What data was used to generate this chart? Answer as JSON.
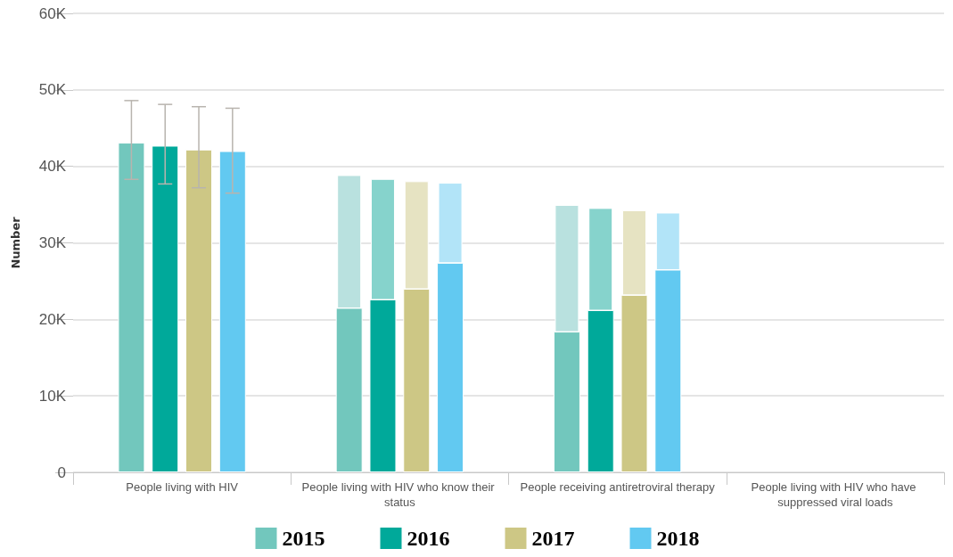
{
  "chart_data": {
    "type": "bar",
    "ylabel": "Number",
    "categories": [
      "People living with HIV",
      "People living with HIV who know their status",
      "People receiving antiretroviral therapy",
      "People living with HIV who have suppressed viral loads"
    ],
    "series": [
      {
        "name": "2015",
        "color": "#72c7bd",
        "values": [
          43100,
          21500,
          18400,
          null
        ],
        "errors": [
          [
            38300,
            48600
          ],
          null,
          null,
          null
        ]
      },
      {
        "color": "#b9e1df",
        "values": [
          null,
          17300,
          16500,
          null
        ],
        "base": [
          null,
          21500,
          18400,
          null
        ]
      },
      {
        "name": "2016",
        "color": "#00a99a",
        "values": [
          42700,
          22600,
          21200,
          null
        ],
        "errors": [
          [
            37700,
            48100
          ],
          null,
          null,
          null
        ]
      },
      {
        "color": "#86d3cc",
        "values": [
          null,
          15700,
          13300,
          null
        ],
        "base": [
          null,
          22600,
          21200,
          null
        ]
      },
      {
        "name": "2017",
        "color": "#cdc785",
        "values": [
          42200,
          24000,
          23200,
          null
        ],
        "errors": [
          [
            37200,
            47800
          ],
          null,
          null,
          null
        ]
      },
      {
        "color": "#e6e3c2",
        "values": [
          null,
          14000,
          11000,
          null
        ],
        "base": [
          null,
          24000,
          23200,
          null
        ]
      },
      {
        "name": "2018",
        "color": "#62c9f1",
        "values": [
          42000,
          27400,
          26500,
          null
        ],
        "errors": [
          [
            36500,
            47600
          ],
          null,
          null,
          null
        ]
      },
      {
        "color": "#b2e4f8",
        "values": [
          null,
          10400,
          7400,
          null
        ],
        "base": [
          null,
          27400,
          26500,
          null
        ]
      }
    ],
    "ylim": [
      0,
      60000
    ],
    "yticks": [
      0,
      {
        "value": 10000,
        "label": "10K"
      },
      {
        "value": 20000,
        "label": "20K"
      },
      {
        "value": 30000,
        "label": "30K"
      },
      {
        "value": 40000,
        "label": "40K"
      },
      {
        "value": 50000,
        "label": "50K"
      },
      {
        "value": 60000,
        "label": "60K"
      }
    ],
    "grid": "y",
    "legend": "bottom"
  }
}
